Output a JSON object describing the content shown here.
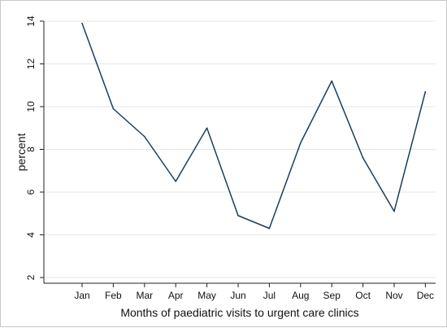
{
  "chart_data": {
    "type": "line",
    "xlabel": "Months of paediatric visits to urgent care clinics",
    "ylabel": "percent",
    "categories": [
      "Jan",
      "Feb",
      "Mar",
      "Apr",
      "May",
      "Jun",
      "Jul",
      "Aug",
      "Sep",
      "Oct",
      "Nov",
      "Dec"
    ],
    "series": [
      {
        "values": [
          13.9,
          9.9,
          8.6,
          6.5,
          9.0,
          4.9,
          4.3,
          8.3,
          11.2,
          7.6,
          5.1,
          10.7
        ]
      }
    ],
    "yticks": [
      "2",
      "4",
      "6",
      "8",
      "10",
      "12",
      "14"
    ],
    "ylim": [
      2,
      14
    ],
    "grid": "horizontal",
    "colors": {
      "line": "#1b3d5f",
      "grid": "#e6e6e6",
      "axis": "#222222"
    }
  }
}
